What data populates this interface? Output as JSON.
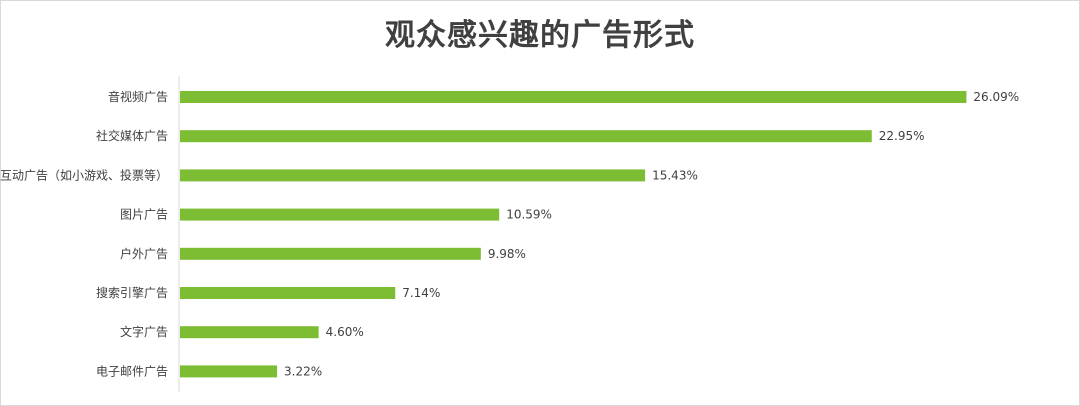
{
  "chart_data": {
    "type": "bar",
    "orientation": "horizontal",
    "title": "观众感兴趣的广告形式",
    "categories": [
      "音视频广告",
      "社交媒体广告",
      "互动广告（如小游戏、投票等）",
      "图片广告",
      "户外广告",
      "搜索引擎广告",
      "文字广告",
      "电子邮件广告"
    ],
    "values": [
      26.09,
      22.95,
      15.43,
      10.59,
      9.98,
      7.14,
      4.6,
      3.22
    ],
    "data_labels": [
      "26.09%",
      "22.95%",
      "15.43%",
      "10.59%",
      "9.98%",
      "7.14%",
      "4.60%",
      "3.22%"
    ],
    "xlim": [
      0,
      28
    ],
    "bar_color": "#7dbd33",
    "axis_color": "#d9d9d9",
    "grid": false,
    "legend": "none"
  }
}
